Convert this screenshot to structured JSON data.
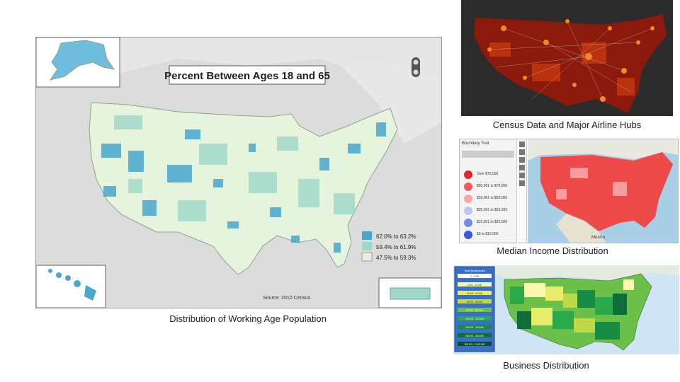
{
  "main_map": {
    "title": "Percent Between Ages 18 and 65",
    "legend": [
      {
        "label": "62.0% to 63.2%",
        "color": "#4aa6cf"
      },
      {
        "label": "59.4% to 61.9%",
        "color": "#9fd8c8"
      },
      {
        "label": "47.5% to 59.3%",
        "color": "#e2f3dc"
      }
    ],
    "source": "Source: 2010 Census",
    "caption": "Distribution of Working Age Population"
  },
  "airline_map": {
    "caption": "Census Data and Major Airline Hubs",
    "background": "#2b2b2b",
    "fill": "#8b1a0c",
    "hub_color": "#f08a24"
  },
  "income_map": {
    "caption": "Median Income Distribution",
    "sidebar_title": "Boundary Tool",
    "legend": [
      {
        "label": "Over $75,000",
        "color": "#e8232a"
      },
      {
        "label": "$50,001 to $75,000",
        "color": "#f05a5a"
      },
      {
        "label": "$35,001 to $50,000",
        "color": "#f7a6a6"
      },
      {
        "label": "$25,001 to $35,000",
        "color": "#b9c6ef"
      },
      {
        "label": "$15,001 to $25,000",
        "color": "#6f8de8"
      },
      {
        "label": "$0 to $15,000",
        "color": "#3a55e0"
      }
    ],
    "map_label": "Mexico"
  },
  "business_map": {
    "caption": "Business Distribution",
    "legend_title": "Total Businesses",
    "legend": [
      {
        "label": "0 - 2,000",
        "color": "#ffffff"
      },
      {
        "label": "2,001 - 10,000",
        "color": "#fff7b0"
      },
      {
        "label": "10,001 - 25,000",
        "color": "#e8ec6a"
      },
      {
        "label": "25,001 - 50,000",
        "color": "#bcd94a"
      },
      {
        "label": "50,001 - 100,000",
        "color": "#6cc04a"
      },
      {
        "label": "100,001 - 200,000",
        "color": "#2aa84a"
      },
      {
        "label": "200,001 - 300,000",
        "color": "#178a44"
      },
      {
        "label": "300,001 - 500,000",
        "color": "#0d6e3c"
      },
      {
        "label": "500,001 - 2,000,000",
        "color": "#0a4f30"
      }
    ]
  }
}
